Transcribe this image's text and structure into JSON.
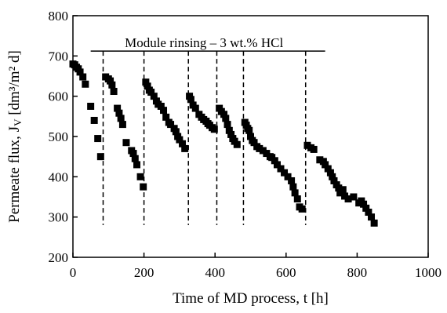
{
  "chart_data": {
    "type": "scatter",
    "title": "",
    "xlabel": "Time of MD process, t [h]",
    "ylabel": "Permeate flux, Jv [dm³/m² d]",
    "ylabel_main": "Permeate flux, J",
    "ylabel_sub": "V",
    "ylabel_unit": " [dm³/m² d]",
    "xlim": [
      0,
      1000
    ],
    "ylim": [
      200,
      800
    ],
    "xticks": [
      0,
      200,
      400,
      600,
      800,
      1000
    ],
    "yticks": [
      200,
      300,
      400,
      500,
      600,
      700,
      800
    ],
    "grid": false,
    "annotation": {
      "text": "Module rinsing – 3 wt.% HCl",
      "x_start": 50,
      "x_end": 710,
      "y": 712
    },
    "rinse_times": [
      85,
      200,
      325,
      405,
      480,
      655
    ],
    "marker_color": "#000000",
    "series": [
      {
        "values": [
          [
            0,
            680
          ],
          [
            5,
            678
          ],
          [
            10,
            672
          ],
          [
            15,
            668
          ],
          [
            20,
            660
          ],
          [
            28,
            648
          ],
          [
            35,
            630
          ],
          [
            50,
            575
          ],
          [
            60,
            540
          ],
          [
            70,
            495
          ],
          [
            78,
            450
          ],
          [
            92,
            648
          ],
          [
            100,
            643
          ],
          [
            105,
            638
          ],
          [
            110,
            628
          ],
          [
            115,
            612
          ],
          [
            125,
            570
          ],
          [
            130,
            558
          ],
          [
            135,
            545
          ],
          [
            140,
            530
          ],
          [
            150,
            485
          ],
          [
            165,
            465
          ],
          [
            170,
            458
          ],
          [
            175,
            445
          ],
          [
            180,
            430
          ],
          [
            190,
            400
          ],
          [
            198,
            375
          ],
          [
            205,
            635
          ],
          [
            210,
            625
          ],
          [
            215,
            615
          ],
          [
            220,
            610
          ],
          [
            228,
            600
          ],
          [
            235,
            588
          ],
          [
            240,
            580
          ],
          [
            248,
            575
          ],
          [
            255,
            565
          ],
          [
            262,
            548
          ],
          [
            270,
            535
          ],
          [
            275,
            530
          ],
          [
            285,
            520
          ],
          [
            290,
            512
          ],
          [
            295,
            500
          ],
          [
            300,
            492
          ],
          [
            308,
            482
          ],
          [
            315,
            470
          ],
          [
            328,
            600
          ],
          [
            332,
            592
          ],
          [
            338,
            578
          ],
          [
            345,
            570
          ],
          [
            355,
            555
          ],
          [
            362,
            548
          ],
          [
            368,
            542
          ],
          [
            375,
            538
          ],
          [
            380,
            532
          ],
          [
            385,
            528
          ],
          [
            392,
            522
          ],
          [
            398,
            518
          ],
          [
            412,
            570
          ],
          [
            418,
            562
          ],
          [
            425,
            555
          ],
          [
            430,
            545
          ],
          [
            435,
            530
          ],
          [
            440,
            515
          ],
          [
            445,
            505
          ],
          [
            450,
            495
          ],
          [
            455,
            488
          ],
          [
            462,
            480
          ],
          [
            484,
            535
          ],
          [
            488,
            528
          ],
          [
            492,
            520
          ],
          [
            496,
            515
          ],
          [
            500,
            500
          ],
          [
            505,
            490
          ],
          [
            510,
            485
          ],
          [
            518,
            475
          ],
          [
            525,
            470
          ],
          [
            535,
            465
          ],
          [
            545,
            458
          ],
          [
            555,
            450
          ],
          [
            560,
            448
          ],
          [
            568,
            440
          ],
          [
            575,
            430
          ],
          [
            585,
            420
          ],
          [
            595,
            410
          ],
          [
            605,
            400
          ],
          [
            615,
            390
          ],
          [
            620,
            375
          ],
          [
            625,
            360
          ],
          [
            632,
            345
          ],
          [
            638,
            325
          ],
          [
            645,
            320
          ],
          [
            660,
            478
          ],
          [
            670,
            472
          ],
          [
            678,
            468
          ],
          [
            695,
            442
          ],
          [
            705,
            438
          ],
          [
            710,
            430
          ],
          [
            718,
            420
          ],
          [
            725,
            410
          ],
          [
            730,
            400
          ],
          [
            735,
            390
          ],
          [
            742,
            380
          ],
          [
            748,
            372
          ],
          [
            752,
            360
          ],
          [
            760,
            368
          ],
          [
            765,
            352
          ],
          [
            775,
            345
          ],
          [
            790,
            350
          ],
          [
            805,
            335
          ],
          [
            812,
            340
          ],
          [
            818,
            332
          ],
          [
            825,
            322
          ],
          [
            832,
            312
          ],
          [
            840,
            300
          ],
          [
            848,
            285
          ]
        ]
      }
    ]
  }
}
